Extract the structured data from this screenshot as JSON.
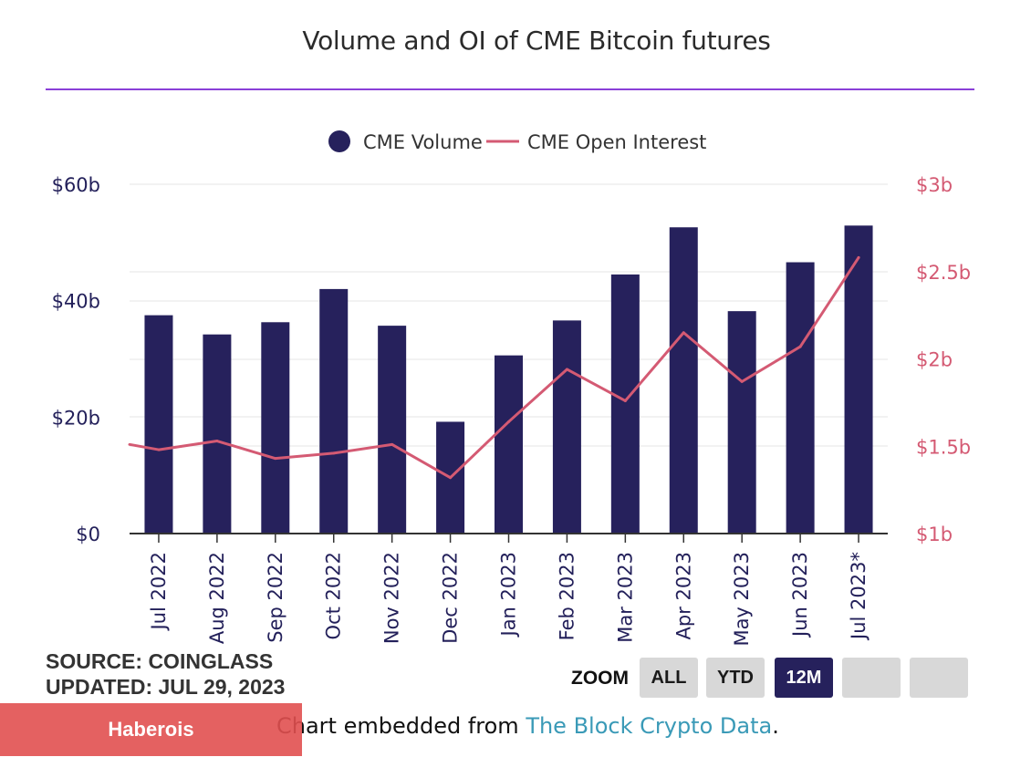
{
  "chart_data": {
    "type": "bar+line",
    "title": "Volume and OI of CME Bitcoin futures",
    "categories": [
      "Jul 2022",
      "Aug 2022",
      "Sep 2022",
      "Oct 2022",
      "Nov 2022",
      "Dec 2022",
      "Jan 2023",
      "Feb 2023",
      "Mar 2023",
      "Apr 2023",
      "May 2023",
      "Jun 2023",
      "Jul 2023*"
    ],
    "series": [
      {
        "name": "CME Volume",
        "type": "bar",
        "axis": "left",
        "color": "#26215c",
        "values": [
          37.5,
          34.2,
          36.3,
          42.0,
          35.7,
          19.2,
          30.6,
          36.6,
          44.5,
          52.6,
          38.2,
          46.6,
          52.9
        ]
      },
      {
        "name": "CME Open Interest",
        "type": "line",
        "axis": "right",
        "color": "#d45a73",
        "values": [
          1.48,
          1.53,
          1.43,
          1.46,
          1.51,
          1.32,
          1.64,
          1.94,
          1.76,
          2.15,
          1.87,
          2.07,
          2.58
        ],
        "start_value": 1.51
      }
    ],
    "y_left": {
      "ticks": [
        "$0",
        "$20b",
        "$40b",
        "$60b"
      ],
      "tick_values": [
        0,
        20,
        40,
        60
      ],
      "range": [
        0,
        60
      ]
    },
    "y_right": {
      "ticks": [
        "$1b",
        "$1.5b",
        "$2b",
        "$2.5b",
        "$3b"
      ],
      "tick_values": [
        1,
        1.5,
        2,
        2.5,
        3
      ],
      "range": [
        1,
        3
      ]
    },
    "legend": {
      "placement": "top-center",
      "items": [
        "CME Volume",
        "CME Open Interest"
      ]
    }
  },
  "footer": {
    "source": "SOURCE: COINGLASS",
    "updated": "UPDATED: JUL 29, 2023",
    "zoom_label": "ZOOM",
    "zoom_buttons": [
      "ALL",
      "YTD",
      "12M",
      "",
      ""
    ],
    "zoom_active": "12M"
  },
  "brand_badge": "Haberois",
  "embed": {
    "prefix": "Chart embedded from ",
    "link_text": "The Block Crypto Data",
    "suffix": "."
  },
  "colors": {
    "accent_rule": "#8a3fd8",
    "bar": "#26215c",
    "line": "#d45a73",
    "link": "#3a9ab7"
  }
}
